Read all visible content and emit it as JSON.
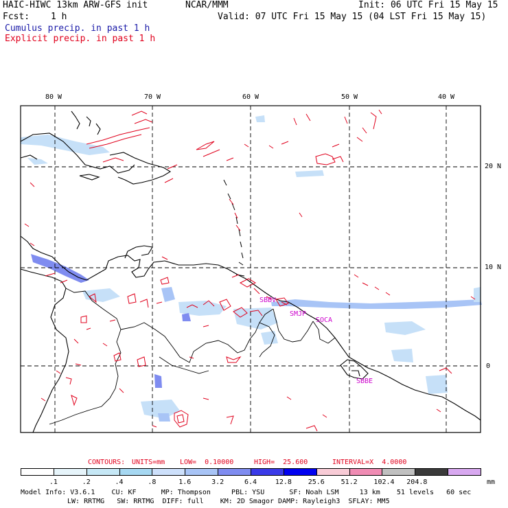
{
  "header": {
    "model": "HAIC-HIWC 13km ARW-GFS init",
    "org": "NCAR/MMM",
    "init": "Init: 06 UTC Fri 15 May 15",
    "fcst_label": "Fcst:",
    "fcst_value": "1 h",
    "valid": "Valid: 07 UTC Fri 15 May 15 (04 LST Fri 15 May 15)",
    "legend_cumulus": "Cumulus precip. in past 1 h",
    "legend_explicit": "Explicit precip. in past 1 h"
  },
  "colors": {
    "cumulus_text": "#1a1aa8",
    "explicit_text": "#e0001c",
    "contour": "#e0001c",
    "station": "#cc00cc"
  },
  "axes": {
    "lon_labels": [
      "80 W",
      "70 W",
      "60 W",
      "50 W",
      "40 W"
    ],
    "lat_labels": [
      "20 N",
      "10 N",
      "0"
    ]
  },
  "stations": [
    "SBBV",
    "SMJP",
    "SOCA",
    "SBBE"
  ],
  "contour_info": {
    "contours": "CONTOURS:",
    "units": "UNITS=mm",
    "low": "LOW=  0.10000",
    "high": "HIGH=  25.600",
    "interval": "INTERVAL=X  4.0000"
  },
  "colorbar": {
    "units": "mm",
    "labels": [
      ".1",
      ".2",
      ".4",
      ".8",
      "1.6",
      "3.2",
      "6.4",
      "12.8",
      "25.6",
      "51.2",
      "102.4",
      "204.8"
    ],
    "colors": [
      "#ffffff",
      "#e6f4fa",
      "#c6e8f6",
      "#a6d8f2",
      "#cde0fb",
      "#a8c4f6",
      "#7f8cf0",
      "#3a3ae8",
      "#0000f0",
      "#f8cbd6",
      "#f08cb4",
      "#c0c0c0",
      "#3a3a3a",
      "#d8a8f0"
    ]
  },
  "footer": {
    "line1": "Model Info: V3.6.1    CU: KF      MP: Thompson     PBL: YSU      SF: Noah LSM     13 km    51 levels   60 sec",
    "line2": "LW: RRTMG   SW: RRTMG  DIFF: full    KM: 2D Smagor DAMP: Rayleigh3  SFLAY: MM5"
  }
}
